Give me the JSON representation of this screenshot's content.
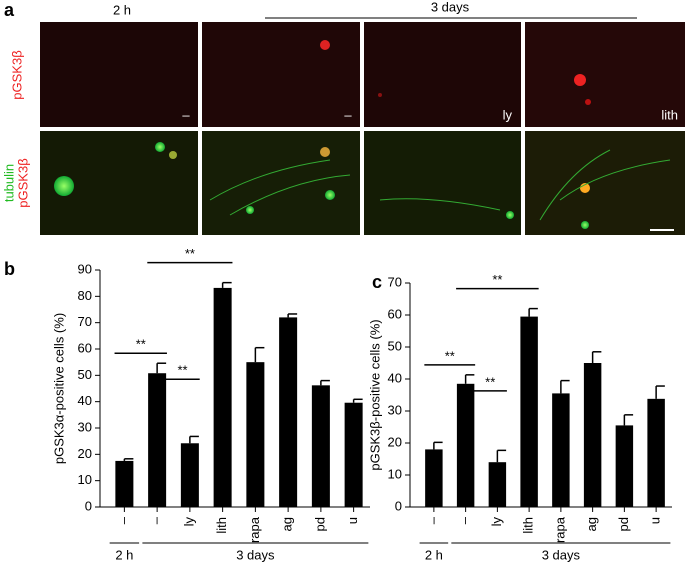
{
  "panel_a": {
    "label": "a",
    "time_2h": "2 h",
    "time_3d": "3 days",
    "row1_label": "pGSK3β",
    "row2_label_green": "tubulin",
    "row2_label_red": "pGSK3β",
    "tags": [
      "–",
      "–",
      "ly",
      "lith"
    ]
  },
  "chart_data": [
    {
      "type": "bar",
      "panel": "b",
      "ylabel": "pGSK3α-positive cells (%)",
      "categories": [
        "–",
        "–",
        "ly",
        "lith",
        "rapa",
        "ag",
        "pd",
        "u"
      ],
      "values": [
        17.5,
        50.8,
        24.2,
        83.2,
        55,
        72,
        46.2,
        39.6
      ],
      "errors": [
        0.8,
        3.8,
        2.6,
        2,
        5.5,
        1.3,
        1.8,
        1.3
      ],
      "color": "#000000",
      "ylim": [
        0,
        90
      ],
      "yticks": [
        0,
        10,
        20,
        30,
        40,
        50,
        60,
        70,
        80,
        90
      ],
      "significance": [
        {
          "from": 0,
          "to": 1,
          "label": "**"
        },
        {
          "from": 1,
          "to": 2,
          "label": "**"
        },
        {
          "from": 1,
          "to": 3,
          "label": "**"
        }
      ],
      "groups": [
        {
          "label": "2 h",
          "from": 0,
          "to": 0
        },
        {
          "label": "3 days",
          "from": 1,
          "to": 7
        }
      ]
    },
    {
      "type": "bar",
      "panel": "c",
      "ylabel": "pGSK3β-positive cells (%)",
      "categories": [
        "–",
        "–",
        "ly",
        "lith",
        "rapa",
        "ag",
        "pd",
        "u"
      ],
      "values": [
        18,
        38.5,
        14,
        59.5,
        35.5,
        45,
        25.5,
        33.8
      ],
      "errors": [
        2.2,
        2.8,
        3.7,
        2.5,
        4,
        3.5,
        3.3,
        4
      ],
      "color": "#000000",
      "ylim": [
        0,
        70
      ],
      "yticks": [
        0,
        10,
        20,
        30,
        40,
        50,
        60,
        70
      ],
      "significance": [
        {
          "from": 0,
          "to": 1,
          "label": "**"
        },
        {
          "from": 1,
          "to": 2,
          "label": "**"
        },
        {
          "from": 1,
          "to": 3,
          "label": "**"
        }
      ],
      "groups": [
        {
          "label": "2 h",
          "from": 0,
          "to": 0
        },
        {
          "label": "3 days",
          "from": 1,
          "to": 7
        }
      ]
    }
  ]
}
